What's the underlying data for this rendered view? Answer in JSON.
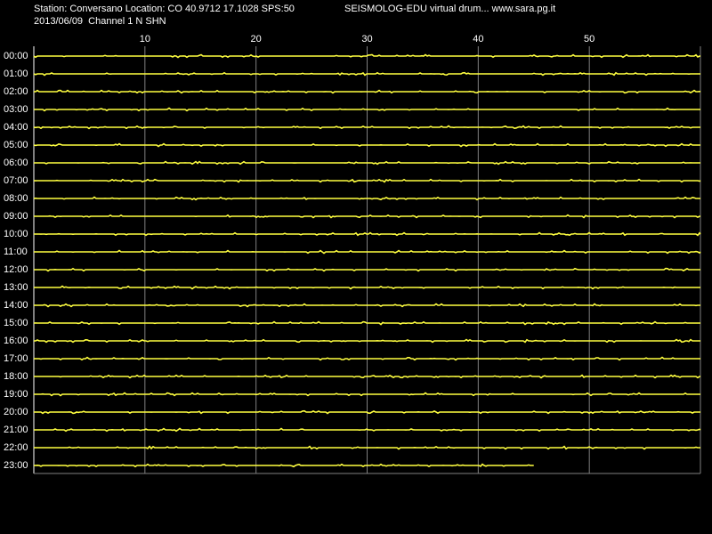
{
  "chart_data": {
    "type": "drum",
    "title": "Station: Conversano Location: CO 40.9712 17.1028 SPS:50",
    "subtitle": "SEISMOLOG-EDU virtual drum... www.sara.pg.it",
    "date_channel": "2013/06/09  Channel 1 N SHN",
    "categories": [
      "00:00",
      "01:00",
      "02:00",
      "03:00",
      "04:00",
      "05:00",
      "06:00",
      "07:00",
      "08:00",
      "09:00",
      "10:00",
      "11:00",
      "12:00",
      "13:00",
      "14:00",
      "15:00",
      "16:00",
      "17:00",
      "18:00",
      "19:00",
      "20:00",
      "21:00",
      "22:00",
      "23:00"
    ],
    "values": [
      60,
      60,
      60,
      60,
      60,
      60,
      60,
      60,
      60,
      60,
      60,
      60,
      60,
      60,
      60,
      60,
      60,
      60,
      60,
      60,
      60,
      60,
      60,
      45
    ],
    "color": "#ffff40",
    "xlim": [
      0,
      60
    ],
    "xticks": [
      10,
      20,
      30,
      40,
      50
    ],
    "grid": true
  }
}
